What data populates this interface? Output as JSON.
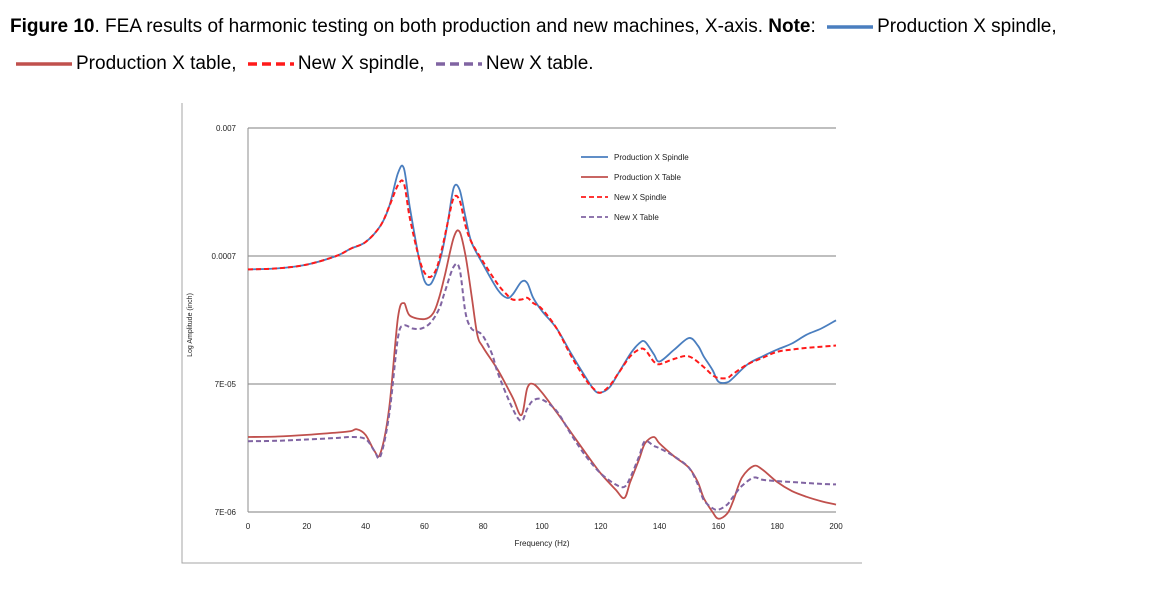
{
  "caption": {
    "figure_label": "Figure 10",
    "text": ". FEA results of harmonic testing on both production and new machines, X-axis. ",
    "note_label": "Note",
    "note_colon": ":",
    "items": [
      {
        "label": "Production X spindle,"
      },
      {
        "label": "Production X table,"
      },
      {
        "label": "New X spindle,"
      },
      {
        "label": "New X table."
      }
    ]
  },
  "colors": {
    "production_spindle": "#4a7ebf",
    "production_table": "#c0504d",
    "new_spindle": "#ff1a1a",
    "new_table": "#8064a2",
    "grid": "#7f7f7f"
  },
  "chart_data": {
    "type": "line",
    "title": "",
    "xlabel": "Frequency (Hz)",
    "ylabel": "Log Amplitude (inch)",
    "yscale": "log",
    "xlim": [
      0,
      200
    ],
    "ylim": [
      7e-06,
      0.007
    ],
    "xticks": [
      0,
      20,
      40,
      60,
      80,
      100,
      120,
      140,
      160,
      180,
      200
    ],
    "yticks": [
      {
        "value": 0.007,
        "label": "0.007"
      },
      {
        "value": 0.0007,
        "label": "0.0007"
      },
      {
        "value": 7e-05,
        "label": "7E-05"
      },
      {
        "value": 7e-06,
        "label": "7E-06"
      }
    ],
    "legend_position": "top-center",
    "series": [
      {
        "name": "Production X Spindle",
        "style": "solid",
        "color_key": "production_spindle",
        "x": [
          0,
          10,
          20,
          30,
          35,
          40,
          45,
          48,
          51,
          53,
          55,
          58,
          60,
          62,
          64,
          66,
          68,
          70,
          72,
          74,
          76,
          80,
          85,
          88,
          90,
          93,
          95,
          97,
          100,
          105,
          110,
          115,
          118,
          120,
          123,
          126,
          130,
          133,
          135,
          138,
          140,
          145,
          150,
          153,
          155,
          158,
          160,
          163,
          165,
          170,
          175,
          180,
          185,
          190,
          195,
          200
        ],
        "y": [
          0.00055,
          0.00056,
          0.0006,
          0.0007,
          0.0008,
          0.0009,
          0.0012,
          0.0017,
          0.0031,
          0.0034,
          0.0017,
          0.0007,
          0.00045,
          0.00042,
          0.00052,
          0.00075,
          0.0013,
          0.0024,
          0.0023,
          0.0014,
          0.0009,
          0.0006,
          0.00038,
          0.00033,
          0.00035,
          0.00044,
          0.00043,
          0.00033,
          0.00026,
          0.00019,
          0.00012,
          7.8e-05,
          6.2e-05,
          6e-05,
          6.6e-05,
          8.5e-05,
          0.00012,
          0.000145,
          0.00015,
          0.00012,
          0.000105,
          0.00013,
          0.00016,
          0.00014,
          0.000115,
          9e-05,
          7.3e-05,
          7.2e-05,
          7.8e-05,
          0.0001,
          0.000115,
          0.00013,
          0.000145,
          0.00017,
          0.00019,
          0.00022
        ]
      },
      {
        "name": "Production X Table",
        "style": "solid",
        "color_key": "production_table",
        "x": [
          0,
          10,
          20,
          30,
          35,
          37,
          40,
          43,
          45,
          48,
          51,
          53,
          55,
          60,
          63,
          65,
          67,
          70,
          72,
          74,
          76,
          78,
          80,
          85,
          90,
          93,
          95,
          97,
          100,
          105,
          110,
          115,
          120,
          125,
          128,
          130,
          133,
          135,
          138,
          140,
          145,
          150,
          153,
          155,
          158,
          160,
          163,
          165,
          168,
          172,
          175,
          180,
          185,
          190,
          195,
          200
        ],
        "y": [
          2.7e-05,
          2.72e-05,
          2.8e-05,
          2.92e-05,
          3e-05,
          3.1e-05,
          2.8e-05,
          2.1e-05,
          2e-05,
          4.5e-05,
          0.00023,
          0.0003,
          0.00024,
          0.000225,
          0.00025,
          0.00033,
          0.0005,
          0.00098,
          0.00108,
          0.0007,
          0.00035,
          0.00017,
          0.000135,
          9e-05,
          5.5e-05,
          4e-05,
          6.5e-05,
          7e-05,
          6e-05,
          4.2e-05,
          2.9e-05,
          2e-05,
          1.4e-05,
          1.05e-05,
          9e-06,
          1.2e-05,
          1.8e-05,
          2.4e-05,
          2.7e-05,
          2.4e-05,
          1.9e-05,
          1.55e-05,
          1.2e-05,
          9e-06,
          7e-06,
          6.2e-06,
          6.8e-06,
          8.5e-06,
          1.3e-05,
          1.6e-05,
          1.5e-05,
          1.2e-05,
          1.02e-05,
          9.2e-06,
          8.5e-06,
          8e-06
        ]
      },
      {
        "name": "New X Spindle",
        "style": "dashed",
        "color_key": "new_spindle",
        "x": [
          0,
          10,
          20,
          30,
          35,
          40,
          45,
          48,
          51,
          53,
          55,
          58,
          60,
          62,
          64,
          66,
          68,
          70,
          72,
          74,
          76,
          80,
          85,
          88,
          90,
          93,
          95,
          97,
          100,
          105,
          110,
          115,
          118,
          120,
          123,
          126,
          130,
          133,
          135,
          138,
          140,
          145,
          150,
          155,
          158,
          160,
          163,
          165,
          170,
          175,
          180,
          185,
          190,
          195,
          200
        ],
        "y": [
          0.00055,
          0.00056,
          0.0006,
          0.0007,
          0.0008,
          0.0009,
          0.0012,
          0.0017,
          0.0025,
          0.0026,
          0.0014,
          0.0007,
          0.00052,
          0.00048,
          0.00055,
          0.0008,
          0.0013,
          0.002,
          0.0019,
          0.0012,
          0.0009,
          0.00063,
          0.00042,
          0.00035,
          0.00032,
          0.00032,
          0.00033,
          0.0003,
          0.00027,
          0.00019,
          0.000115,
          7.5e-05,
          6.3e-05,
          6e-05,
          6.8e-05,
          8.5e-05,
          0.000115,
          0.00013,
          0.00013,
          0.000105,
          0.0001,
          0.00011,
          0.000115,
          9.5e-05,
          8.2e-05,
          7.8e-05,
          7.8e-05,
          8.4e-05,
          0.0001,
          0.000112,
          0.000125,
          0.00013,
          0.000134,
          0.000137,
          0.00014
        ]
      },
      {
        "name": "New X Table",
        "style": "dashed",
        "color_key": "new_table",
        "x": [
          0,
          10,
          20,
          30,
          35,
          40,
          43,
          45,
          48,
          51,
          53,
          56,
          59,
          62,
          65,
          67,
          70,
          72,
          74,
          76,
          78,
          80,
          83,
          85,
          90,
          93,
          95,
          97,
          100,
          105,
          110,
          115,
          120,
          125,
          128,
          130,
          133,
          135,
          138,
          140,
          145,
          150,
          153,
          155,
          158,
          160,
          163,
          165,
          168,
          172,
          175,
          180,
          185,
          190,
          195,
          200
        ],
        "y": [
          2.5e-05,
          2.52e-05,
          2.58e-05,
          2.65e-05,
          2.7e-05,
          2.6e-05,
          2.1e-05,
          1.9e-05,
          4e-05,
          0.00016,
          0.0002,
          0.00019,
          0.00019,
          0.00021,
          0.00027,
          0.00037,
          0.00058,
          0.00055,
          0.00025,
          0.00019,
          0.00018,
          0.000165,
          0.00012,
          8.5e-05,
          4.5e-05,
          3.6e-05,
          4.5e-05,
          5.2e-05,
          5.3e-05,
          4.3e-05,
          2.8e-05,
          1.9e-05,
          1.4e-05,
          1.15e-05,
          1.1e-05,
          1.3e-05,
          1.9e-05,
          2.5e-05,
          2.3e-05,
          2.2e-05,
          1.9e-05,
          1.55e-05,
          1.15e-05,
          8.7e-06,
          7.5e-06,
          7.3e-06,
          8e-06,
          9.2e-06,
          1.12e-05,
          1.3e-05,
          1.25e-05,
          1.22e-05,
          1.2e-05,
          1.18e-05,
          1.16e-05,
          1.15e-05
        ]
      }
    ]
  }
}
